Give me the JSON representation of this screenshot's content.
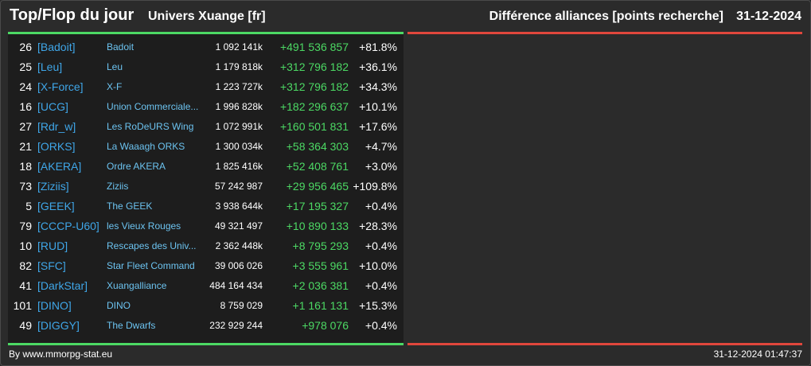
{
  "header": {
    "title": "Top/Flop du jour",
    "subtitle": "Univers Xuange [fr]",
    "right_title": "Différence alliances [points recherche]",
    "date": "31-12-2024"
  },
  "rows": [
    {
      "rank": "26",
      "tag": "[Badoit]",
      "name": "Badoit",
      "points": "1 092 141k",
      "diff": "+491 536 857",
      "pct": "+81.8%"
    },
    {
      "rank": "25",
      "tag": "[Leu]",
      "name": "Leu",
      "points": "1 179 818k",
      "diff": "+312 796 182",
      "pct": "+36.1%"
    },
    {
      "rank": "24",
      "tag": "[X-Force]",
      "name": "X-F",
      "points": "1 223 727k",
      "diff": "+312 796 182",
      "pct": "+34.3%"
    },
    {
      "rank": "16",
      "tag": "[UCG]",
      "name": "Union Commerciale...",
      "points": "1 996 828k",
      "diff": "+182 296 637",
      "pct": "+10.1%"
    },
    {
      "rank": "27",
      "tag": "[Rdr_w]",
      "name": "Les RoDeURS Wing",
      "points": "1 072 991k",
      "diff": "+160 501 831",
      "pct": "+17.6%"
    },
    {
      "rank": "21",
      "tag": "[ORKS]",
      "name": "La Waaagh ORKS",
      "points": "1 300 034k",
      "diff": "+58 364 303",
      "pct": "+4.7%"
    },
    {
      "rank": "18",
      "tag": "[AKERA]",
      "name": "Ordre AKERA",
      "points": "1 825 416k",
      "diff": "+52 408 761",
      "pct": "+3.0%"
    },
    {
      "rank": "73",
      "tag": "[Ziziis]",
      "name": "Ziziis",
      "points": "57 242 987",
      "diff": "+29 956 465",
      "pct": "+109.8%"
    },
    {
      "rank": "5",
      "tag": "[GEEK]",
      "name": "The GEEK",
      "points": "3 938 644k",
      "diff": "+17 195 327",
      "pct": "+0.4%"
    },
    {
      "rank": "79",
      "tag": "[CCCP-U60]",
      "name": "les Vieux Rouges",
      "points": "49 321 497",
      "diff": "+10 890 133",
      "pct": "+28.3%"
    },
    {
      "rank": "10",
      "tag": "[RUD]",
      "name": "Rescapes des Univ...",
      "points": "2 362 448k",
      "diff": "+8 795 293",
      "pct": "+0.4%"
    },
    {
      "rank": "82",
      "tag": "[SFC]",
      "name": "Star Fleet Command",
      "points": "39 006 026",
      "diff": "+3 555 961",
      "pct": "+10.0%"
    },
    {
      "rank": "41",
      "tag": "[DarkStar]",
      "name": "Xuangalliance",
      "points": "484 164 434",
      "diff": "+2 036 381",
      "pct": "+0.4%"
    },
    {
      "rank": "101",
      "tag": "[DINO]",
      "name": "DINO",
      "points": "8 759 029",
      "diff": "+1 161 131",
      "pct": "+15.3%"
    },
    {
      "rank": "49",
      "tag": "[DIGGY]",
      "name": "The Dwarfs",
      "points": "232 929 244",
      "diff": "+978 076",
      "pct": "+0.4%"
    }
  ],
  "footer": {
    "credit": "By www.mmorpg-stat.eu",
    "timestamp": "31-12-2024 01:47:37"
  },
  "colors": {
    "top_accent": "#4cd964",
    "flop_accent": "#e0473c",
    "tag_color": "#3fa6e8",
    "name_color": "#6cc3f0",
    "diff_color": "#4cd964"
  }
}
